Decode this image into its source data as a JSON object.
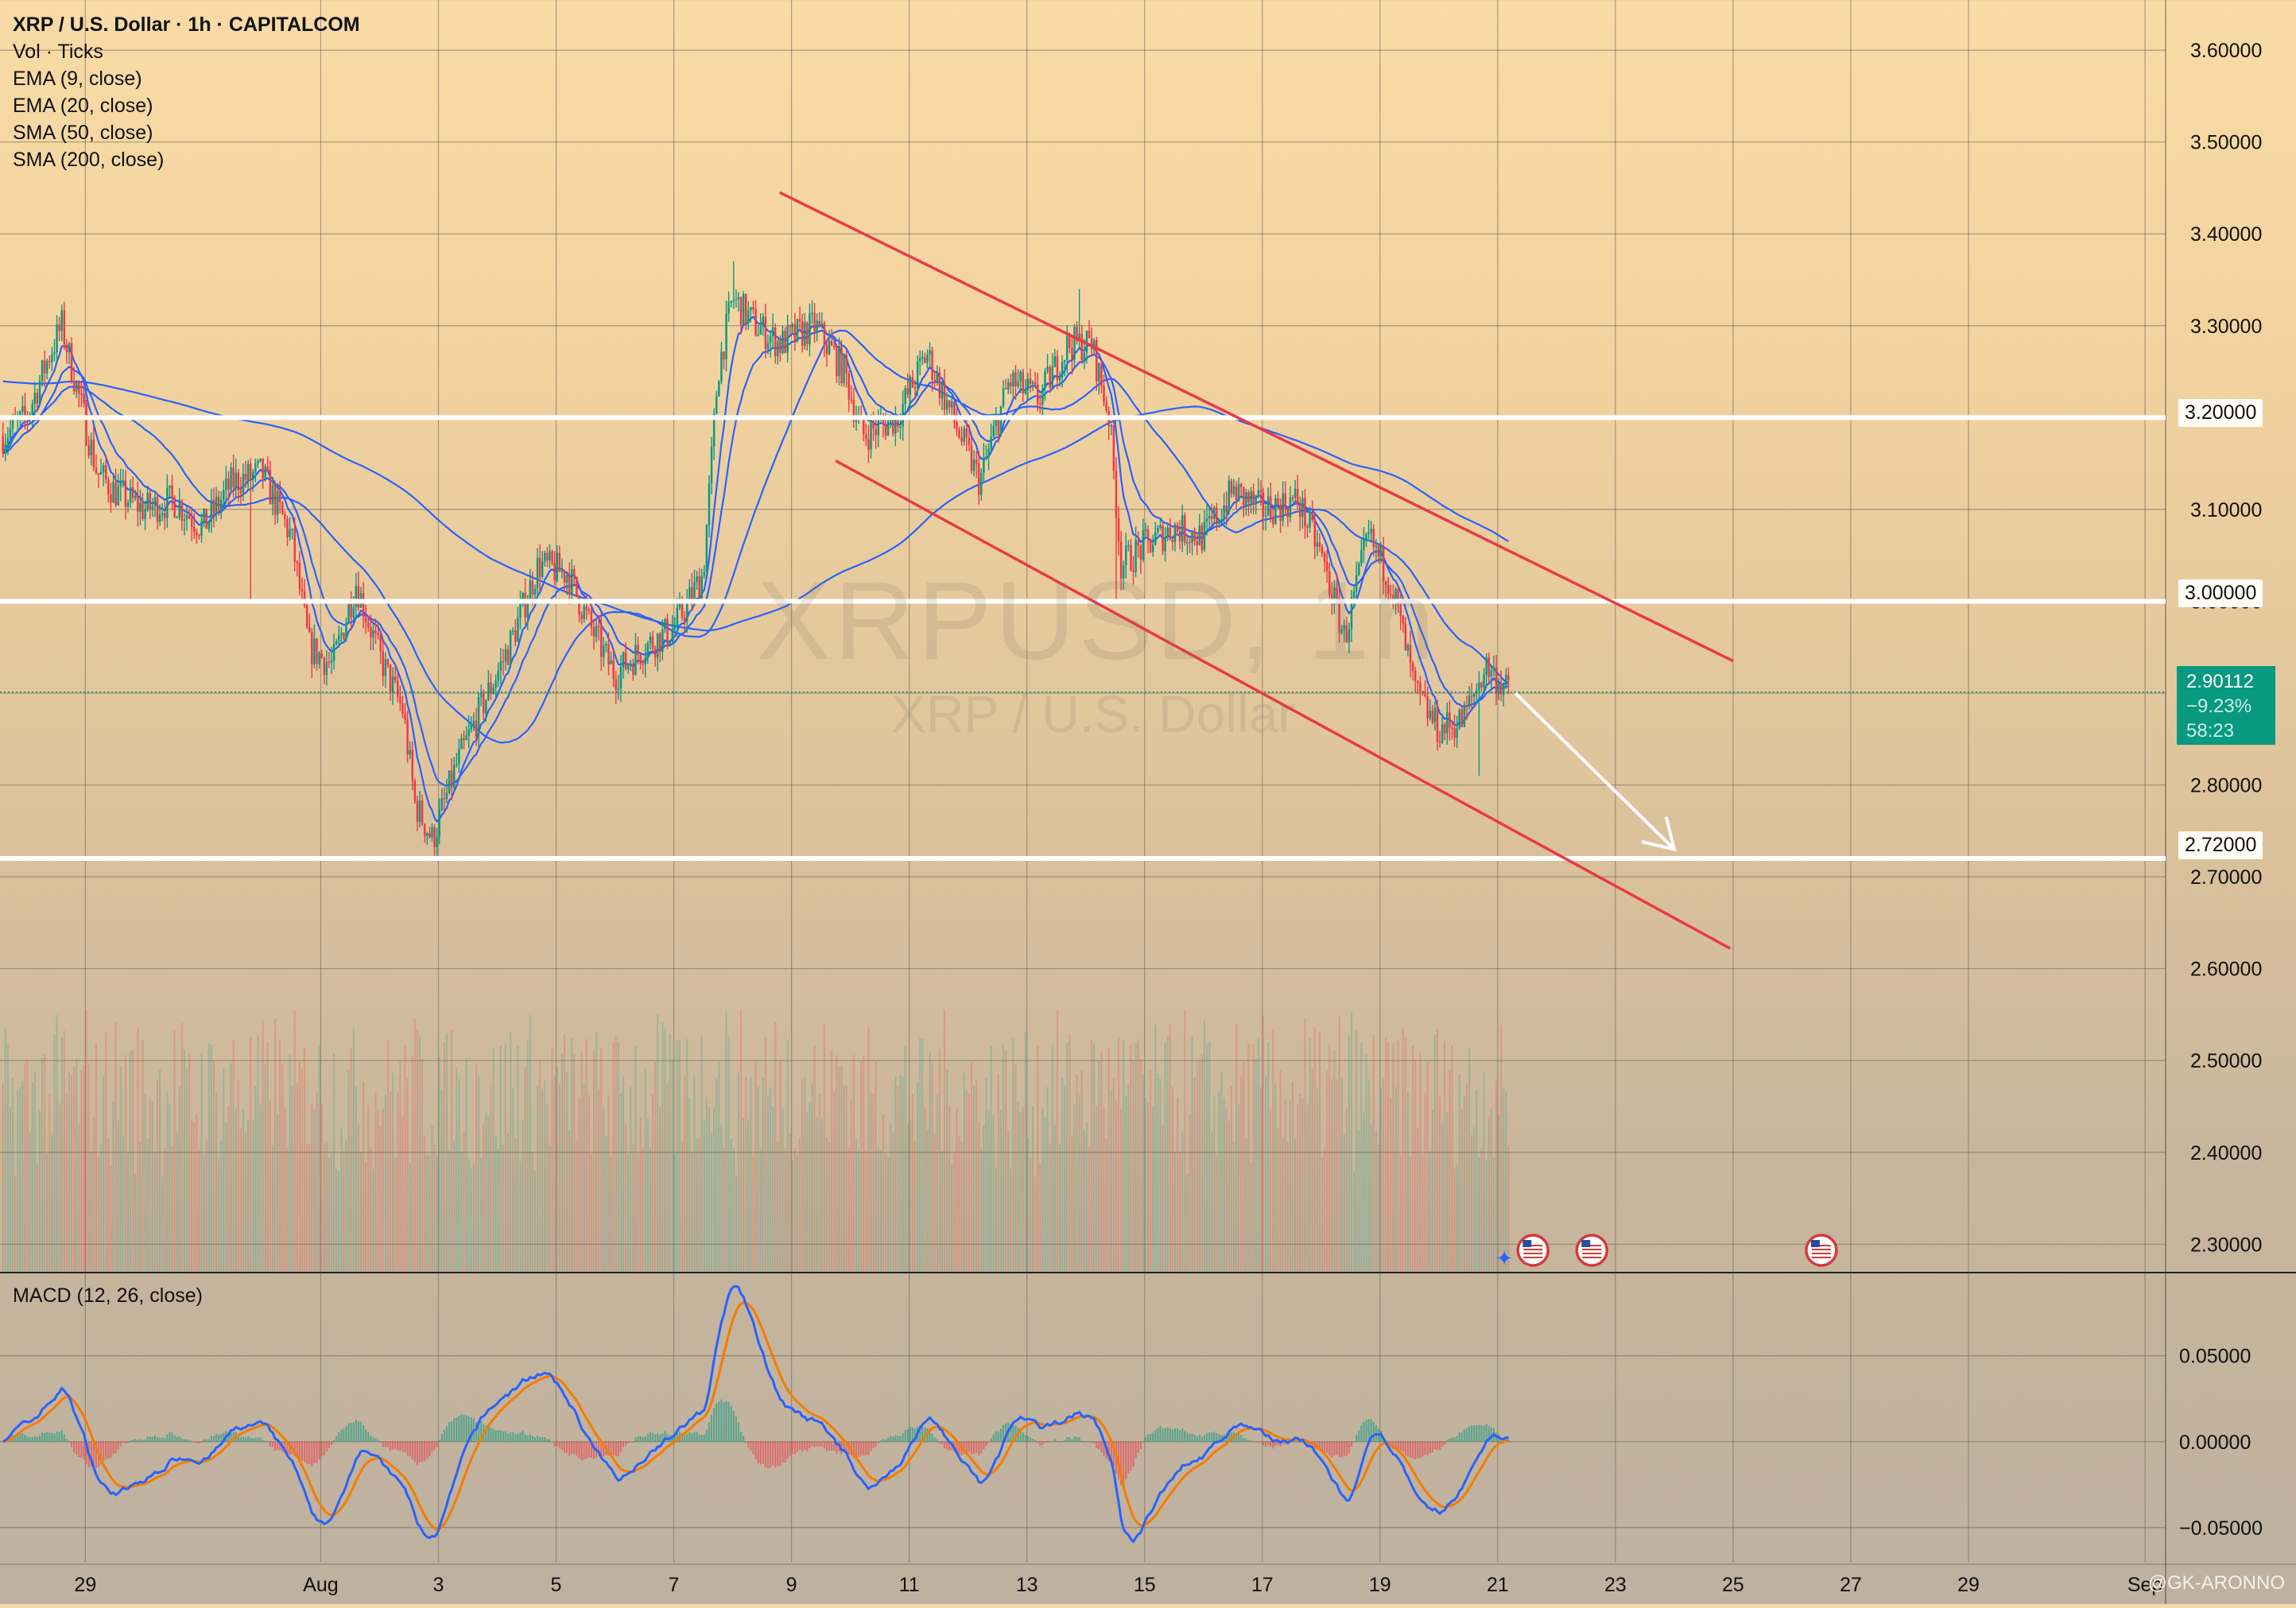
{
  "header": {
    "title": "XRP / U.S. Dollar · 1h · CAPITALCOM",
    "indicators": [
      "Vol · Ticks",
      "EMA (9, close)",
      "EMA (20, close)",
      "SMA (50, close)",
      "SMA (200, close)"
    ]
  },
  "watermark": {
    "symbol": "XRPUSD, 1h",
    "name": "XRP / U.S. Dollar"
  },
  "macd_label": "MACD (12, 26, close)",
  "last_price": {
    "price": "2.90112",
    "change": "−9.23%",
    "countdown": "58:23"
  },
  "credit": "@GK-ARONNO",
  "colors": {
    "up": "#089981",
    "down": "#f23645",
    "ma": "#2962ff",
    "signal": "#f57c00",
    "channel": "#ea3a45",
    "level": "#ffffff",
    "grid": "#6d6459",
    "text": "#111111"
  },
  "chart_data": [
    {
      "type": "candlestick",
      "title": "XRP / U.S. Dollar · 1h · CAPITALCOM",
      "x_tick_labels": [
        "29",
        "Aug",
        "3",
        "5",
        "7",
        "9",
        "11",
        "13",
        "15",
        "17",
        "19",
        "21",
        "23",
        "25",
        "27",
        "29",
        "Sep"
      ],
      "x_tick_days": [
        -3,
        1,
        3,
        5,
        7,
        9,
        11,
        13,
        15,
        17,
        19,
        21,
        23,
        25,
        27,
        29,
        32
      ],
      "y_tick_labels": [
        "3.60000",
        "3.50000",
        "3.40000",
        "3.30000",
        "3.20000",
        "3.10000",
        "3.00000",
        "2.90000",
        "2.80000",
        "2.70000",
        "2.60000",
        "2.50000",
        "2.40000",
        "2.30000"
      ],
      "ylim": [
        2.27,
        3.62
      ],
      "xlim_days": [
        -4.45,
        32.35
      ],
      "close_path": [
        {
          "t": -4.4,
          "p": 3.18
        },
        {
          "t": -4.0,
          "p": 3.2
        },
        {
          "t": -3.6,
          "p": 3.27
        },
        {
          "t": -3.4,
          "p": 3.3
        },
        {
          "t": -3.1,
          "p": 3.22
        },
        {
          "t": -2.8,
          "p": 3.14
        },
        {
          "t": -2.5,
          "p": 3.12
        },
        {
          "t": -2.0,
          "p": 3.1
        },
        {
          "t": -1.5,
          "p": 3.11
        },
        {
          "t": -1.0,
          "p": 3.08
        },
        {
          "t": -0.5,
          "p": 3.13
        },
        {
          "t": 0.0,
          "p": 3.14
        },
        {
          "t": 0.5,
          "p": 3.07
        },
        {
          "t": 0.8,
          "p": 2.95
        },
        {
          "t": 1.2,
          "p": 2.93
        },
        {
          "t": 1.6,
          "p": 3.02
        },
        {
          "t": 2.0,
          "p": 2.94
        },
        {
          "t": 2.4,
          "p": 2.88
        },
        {
          "t": 2.6,
          "p": 2.78
        },
        {
          "t": 2.9,
          "p": 2.74
        },
        {
          "t": 3.3,
          "p": 2.82
        },
        {
          "t": 3.7,
          "p": 2.88
        },
        {
          "t": 4.2,
          "p": 2.95
        },
        {
          "t": 4.7,
          "p": 3.04
        },
        {
          "t": 5.2,
          "p": 3.03
        },
        {
          "t": 5.6,
          "p": 2.97
        },
        {
          "t": 6.0,
          "p": 2.92
        },
        {
          "t": 6.5,
          "p": 2.95
        },
        {
          "t": 7.0,
          "p": 2.97
        },
        {
          "t": 7.5,
          "p": 3.03
        },
        {
          "t": 7.75,
          "p": 3.25
        },
        {
          "t": 8.0,
          "p": 3.33
        },
        {
          "t": 8.4,
          "p": 3.3
        },
        {
          "t": 8.8,
          "p": 3.28
        },
        {
          "t": 9.4,
          "p": 3.3
        },
        {
          "t": 9.9,
          "p": 3.25
        },
        {
          "t": 10.2,
          "p": 3.18
        },
        {
          "t": 10.8,
          "p": 3.2
        },
        {
          "t": 11.3,
          "p": 3.27
        },
        {
          "t": 11.8,
          "p": 3.19
        },
        {
          "t": 12.2,
          "p": 3.13
        },
        {
          "t": 12.7,
          "p": 3.24
        },
        {
          "t": 13.2,
          "p": 3.22
        },
        {
          "t": 13.7,
          "p": 3.28
        },
        {
          "t": 14.1,
          "p": 3.28
        },
        {
          "t": 14.4,
          "p": 3.2
        },
        {
          "t": 14.6,
          "p": 3.04
        },
        {
          "t": 15.0,
          "p": 3.06
        },
        {
          "t": 15.5,
          "p": 3.08
        },
        {
          "t": 16.0,
          "p": 3.07
        },
        {
          "t": 16.5,
          "p": 3.12
        },
        {
          "t": 17.0,
          "p": 3.1
        },
        {
          "t": 17.6,
          "p": 3.11
        },
        {
          "t": 18.0,
          "p": 3.05
        },
        {
          "t": 18.4,
          "p": 2.96
        },
        {
          "t": 18.8,
          "p": 3.07
        },
        {
          "t": 19.2,
          "p": 3.02
        },
        {
          "t": 19.6,
          "p": 2.9
        },
        {
          "t": 20.0,
          "p": 2.86
        },
        {
          "t": 20.4,
          "p": 2.87
        },
        {
          "t": 20.8,
          "p": 2.93
        },
        {
          "t": 21.2,
          "p": 2.9
        }
      ],
      "last_price": 2.90112,
      "horizontal_levels": [
        {
          "price": 3.2,
          "label": "3.20000"
        },
        {
          "price": 3.0,
          "label": "3.00000"
        },
        {
          "price": 2.72,
          "label": "2.72000"
        }
      ],
      "channel": {
        "upper": [
          {
            "t": 8.8,
            "p": 3.445
          },
          {
            "t": 25.0,
            "p": 2.935
          }
        ],
        "lower": [
          {
            "t": 9.75,
            "p": 3.153
          },
          {
            "t": 24.95,
            "p": 2.622
          }
        ]
      },
      "projection_arrow": [
        {
          "t": 21.3,
          "p": 2.9
        },
        {
          "t": 24.0,
          "p": 2.73
        }
      ],
      "events_days": [
        21.6,
        22.6,
        26.5
      ],
      "series": [
        {
          "name": "Vol · Ticks",
          "type": "bar"
        },
        {
          "name": "EMA (9, close)",
          "type": "line"
        },
        {
          "name": "EMA (20, close)",
          "type": "line"
        },
        {
          "name": "SMA (50, close)",
          "type": "line"
        },
        {
          "name": "SMA (200, close)",
          "type": "line"
        }
      ]
    },
    {
      "type": "line",
      "title": "MACD (12, 26, close)",
      "y_tick_labels": [
        "0.05000",
        "0.00000",
        "−0.05000"
      ],
      "ylim": [
        -0.07,
        0.098
      ],
      "y_tick_values": [
        0.05,
        0.0,
        -0.05
      ]
    }
  ]
}
